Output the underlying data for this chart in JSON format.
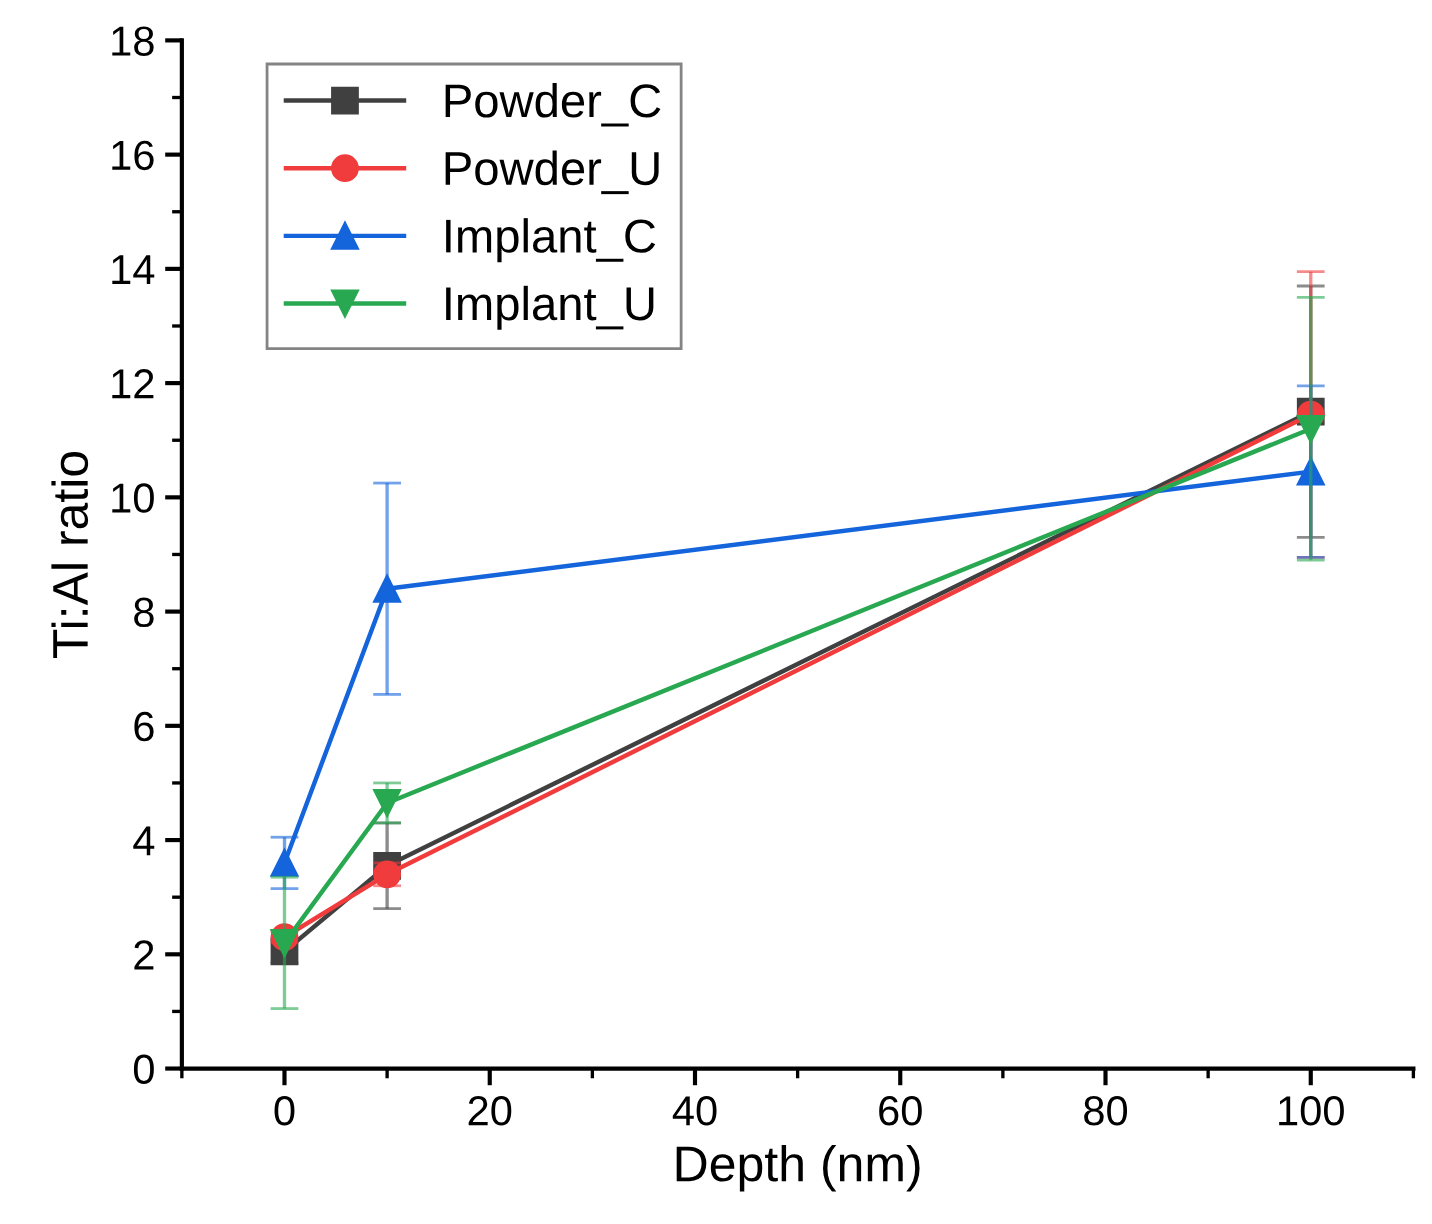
{
  "chart_data": {
    "type": "line",
    "xlabel": "Depth (nm)",
    "ylabel": "Ti:Al ratio",
    "x": [
      0,
      10,
      100
    ],
    "series": [
      {
        "name": "Powder_C",
        "color": "#404040",
        "marker": "square",
        "values": [
          2.05,
          3.55,
          11.5
        ],
        "errors": [
          0.2,
          0.75,
          2.2
        ]
      },
      {
        "name": "Powder_U",
        "color": "#f03c3c",
        "marker": "circle",
        "values": [
          2.3,
          3.4,
          11.45
        ],
        "errors": [
          0.1,
          0.2,
          2.5
        ]
      },
      {
        "name": "Implant_C",
        "color": "#1464dc",
        "marker": "triangle",
        "values": [
          3.6,
          8.4,
          10.45
        ],
        "errors": [
          0.45,
          1.85,
          1.5
        ]
      },
      {
        "name": "Implant_U",
        "color": "#28a850",
        "marker": "triangle_down",
        "values": [
          2.2,
          4.65,
          11.2
        ],
        "errors": [
          1.15,
          0.35,
          2.3
        ]
      }
    ],
    "xlim": [
      -10,
      110
    ],
    "xticks": [
      0,
      20,
      40,
      60,
      80,
      100
    ],
    "ylim": [
      0,
      18
    ],
    "yticks": [
      0,
      2,
      4,
      6,
      8,
      10,
      12,
      14,
      16,
      18
    ],
    "grid": false,
    "legend": "top left",
    "line_style": "solid"
  }
}
